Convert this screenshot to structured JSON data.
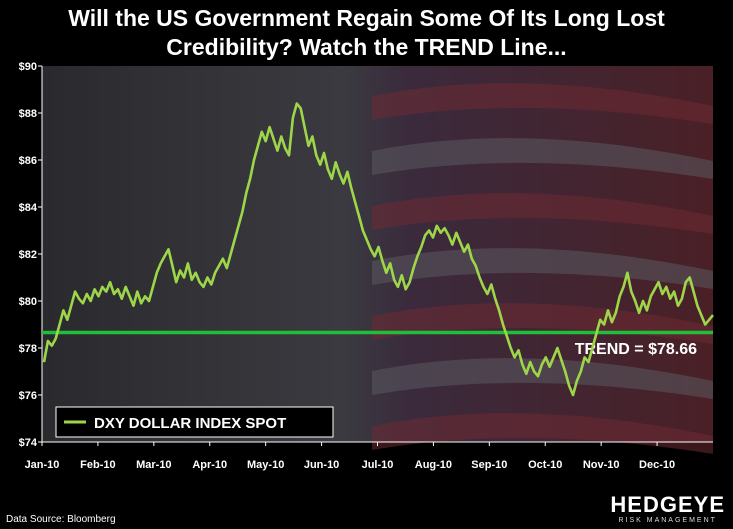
{
  "title_line1": "Will the US Government Regain Some Of Its Long Lost",
  "title_line2": "Credibility? Watch the TREND Line...",
  "source": "Data Source: Bloomberg",
  "logo": {
    "main": "HEDGEYE",
    "sub": "RISK MANAGEMENT"
  },
  "colors": {
    "series": "#9ed64a",
    "trend": "#1fbf3a",
    "background": "#000000"
  },
  "chart_data": {
    "type": "line",
    "ylim": [
      74,
      90
    ],
    "yticks": [
      74,
      76,
      78,
      80,
      82,
      84,
      86,
      88,
      90
    ],
    "ytick_labels": [
      "$74",
      "$76",
      "$78",
      "$80",
      "$82",
      "$84",
      "$86",
      "$88",
      "$90"
    ],
    "xticks": [
      "Jan-10",
      "Feb-10",
      "Mar-10",
      "Apr-10",
      "May-10",
      "Jun-10",
      "Jul-10",
      "Aug-10",
      "Sep-10",
      "Oct-10",
      "Nov-10",
      "Dec-10"
    ],
    "legend_position": "bottom-left",
    "series": [
      {
        "name": "DXY DOLLAR INDEX SPOT",
        "values": [
          77.4,
          78.3,
          78.1,
          78.4,
          79.0,
          79.6,
          79.2,
          79.8,
          80.4,
          80.1,
          79.9,
          80.3,
          80.0,
          80.5,
          80.2,
          80.6,
          80.4,
          80.8,
          80.3,
          80.5,
          80.1,
          80.6,
          80.2,
          79.8,
          80.4,
          79.9,
          80.2,
          80.0,
          80.6,
          81.2,
          81.6,
          81.9,
          82.2,
          81.5,
          80.8,
          81.3,
          81.0,
          81.6,
          80.9,
          81.2,
          80.8,
          80.6,
          81.0,
          80.7,
          81.2,
          81.5,
          81.8,
          81.4,
          82.0,
          82.6,
          83.2,
          83.8,
          84.6,
          85.2,
          86.0,
          86.6,
          87.2,
          86.8,
          87.4,
          86.9,
          86.4,
          87.0,
          86.5,
          86.2,
          87.8,
          88.4,
          88.2,
          87.4,
          86.6,
          87.0,
          86.2,
          85.8,
          86.3,
          85.6,
          85.2,
          85.9,
          85.4,
          85.0,
          85.5,
          84.8,
          84.2,
          83.6,
          83.0,
          82.6,
          82.2,
          81.9,
          82.3,
          81.7,
          81.2,
          81.6,
          80.9,
          80.6,
          81.1,
          80.5,
          80.8,
          81.4,
          81.9,
          82.3,
          82.8,
          83.0,
          82.7,
          83.2,
          82.9,
          83.1,
          82.8,
          82.4,
          82.9,
          82.5,
          82.1,
          82.4,
          81.8,
          81.5,
          81.0,
          80.6,
          80.3,
          80.7,
          80.1,
          79.6,
          79.0,
          78.5,
          78.0,
          77.6,
          77.9,
          77.3,
          76.9,
          77.4,
          77.0,
          76.8,
          77.3,
          77.6,
          77.2,
          77.6,
          78.0,
          77.5,
          77.0,
          76.4,
          76.0,
          76.6,
          77.0,
          77.6,
          77.4,
          78.0,
          78.6,
          79.2,
          79.0,
          79.6,
          79.1,
          79.5,
          80.2,
          80.6,
          81.2,
          80.4,
          80.0,
          79.5,
          80.0,
          79.6,
          80.2,
          80.5,
          80.8,
          80.3,
          80.6,
          80.1,
          80.4,
          79.8,
          80.1,
          80.8,
          81.0,
          80.4,
          79.8,
          79.4,
          79.0,
          79.2,
          79.4
        ]
      }
    ],
    "trend": {
      "label": "TREND = $78.66",
      "value": 78.66
    }
  }
}
